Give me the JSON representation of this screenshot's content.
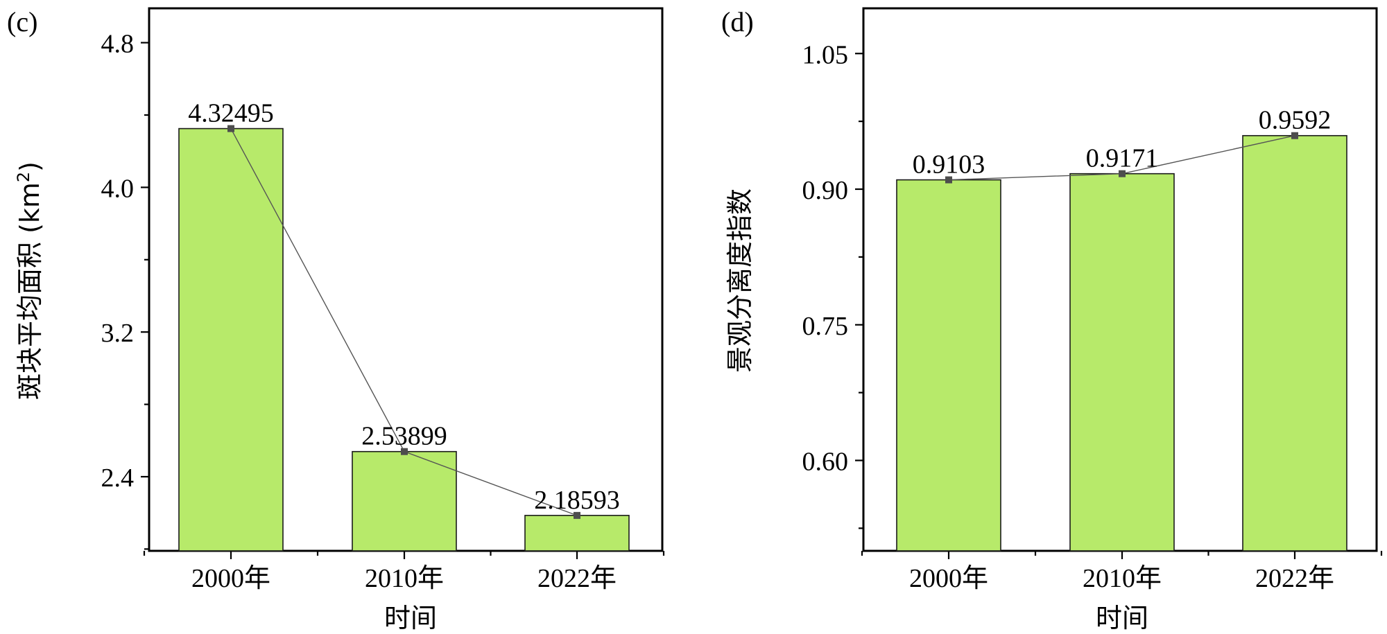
{
  "chart_data": [
    {
      "type": "bar",
      "panel_label": "(c)",
      "categories": [
        "2000年",
        "2010年",
        "2022年"
      ],
      "values": [
        4.32495,
        2.53899,
        2.18593
      ],
      "data_labels": [
        "4.32495",
        "2.53899",
        "2.18593"
      ],
      "xlabel": "时间",
      "ylabel": "斑块平均面积 (km",
      "ylabel_sup": "2",
      "ylabel_close": ")",
      "ylim": [
        1.99,
        4.99
      ],
      "yticks": [
        2.4,
        3.2,
        4.0,
        4.8
      ],
      "ytick_labels": [
        "2.4",
        "3.2",
        "4.0",
        "4.8"
      ],
      "bar_color": "#b7ea6a",
      "connector_line": true,
      "grid": false
    },
    {
      "type": "bar",
      "panel_label": "(d)",
      "categories": [
        "2000年",
        "2010年",
        "2022年"
      ],
      "values": [
        0.9103,
        0.9171,
        0.9592
      ],
      "data_labels": [
        "0.9103",
        "0.9171",
        "0.9592"
      ],
      "xlabel": "时间",
      "ylabel": "景观分离度指数",
      "ylim": [
        0.5,
        1.1
      ],
      "yticks": [
        0.6,
        0.75,
        0.9,
        1.05
      ],
      "ytick_labels": [
        "0.60",
        "0.75",
        "0.90",
        "1.05"
      ],
      "bar_color": "#b7ea6a",
      "connector_line": true,
      "grid": false
    }
  ]
}
